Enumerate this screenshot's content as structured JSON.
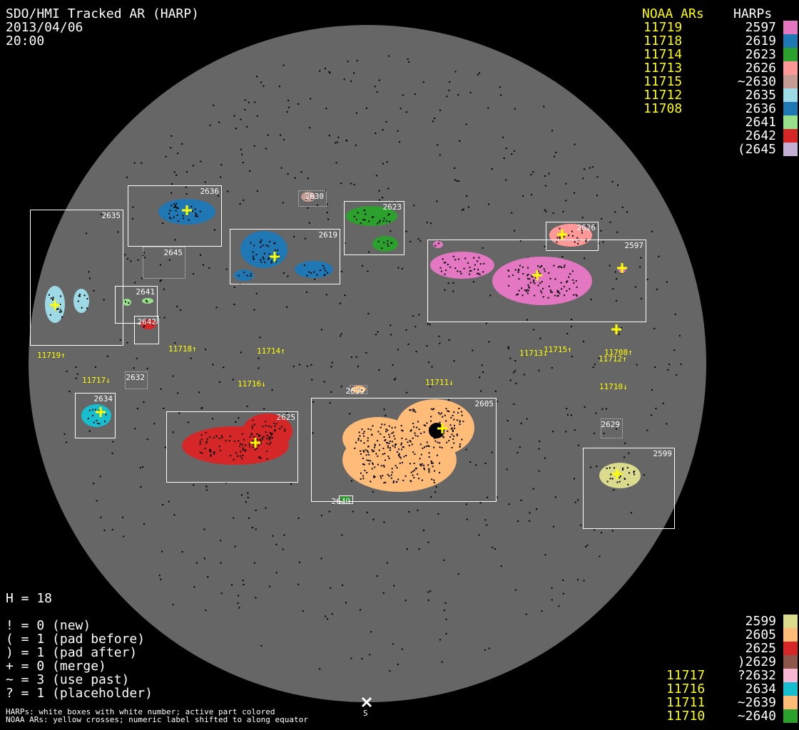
{
  "header": {
    "title": "SDO/HMI Tracked AR (HARP)",
    "date": "2013/04/06",
    "time": "20:00"
  },
  "legend_top": {
    "noaa_heading": "NOAA ARs",
    "harp_heading": "HARPs",
    "noaa": [
      "11719",
      "11718",
      "11714",
      "11713",
      "11715",
      "11712",
      "11708"
    ],
    "harps": [
      {
        "label": "2597",
        "color": "#e377c2"
      },
      {
        "label": "2619",
        "color": "#1f77b4"
      },
      {
        "label": "2623",
        "color": "#2ca02c"
      },
      {
        "label": "2626",
        "color": "#ff9896"
      },
      {
        "label": "~2630",
        "color": "#c49c94"
      },
      {
        "label": "2635",
        "color": "#9edae5"
      },
      {
        "label": "2636",
        "color": "#1f77b4"
      },
      {
        "label": "2641",
        "color": "#98df8a"
      },
      {
        "label": "2642",
        "color": "#d62728"
      },
      {
        "label": "(2645",
        "color": "#c5b0d5"
      }
    ]
  },
  "legend_bottom": {
    "noaa": [
      "11717",
      "11716",
      "11711",
      "11710"
    ],
    "harps": [
      {
        "label": "2599",
        "color": "#dbdb8d"
      },
      {
        "label": "2605",
        "color": "#ffbb78"
      },
      {
        "label": "2625",
        "color": "#d62728"
      },
      {
        "label": ")2629",
        "color": "#8c564b"
      },
      {
        "label": "?2632",
        "color": "#f7b6d2"
      },
      {
        "label": "2634",
        "color": "#17becf"
      },
      {
        "label": "~2639",
        "color": "#ffbb78"
      },
      {
        "label": "~2640",
        "color": "#2ca02c"
      }
    ]
  },
  "stats": {
    "h": "H = 18",
    "lines": [
      "! = 0 (new)",
      "( = 1 (pad before)",
      ") = 1 (pad after)",
      "+ = 0 (merge)",
      "~ = 3 (use past)",
      "? = 1 (placeholder)"
    ]
  },
  "footer": {
    "line1": "HARPs: white boxes with white number; active part colored",
    "line2": "NOAA ARs: yellow crosses; numeric label shifted to along equator",
    "south_marker": "S"
  },
  "disk_harps": [
    "2636",
    "2635",
    "2645",
    "2641",
    "2642",
    "2630",
    "2623",
    "2619",
    "2626",
    "2597",
    "2632",
    "2634",
    "2625",
    "2639",
    "2605",
    "2640",
    "2629",
    "2599"
  ],
  "disk_noaa": [
    "11719↑",
    "11718↑",
    "11714↑",
    "11713↓",
    "11715↑",
    "11708↑",
    "11712↑",
    "11717↓",
    "11716↓",
    "11711↓",
    "11710↓"
  ],
  "colors": {
    "disk": "#666666",
    "box": "#ffffff",
    "noaa": "#ffff00"
  }
}
